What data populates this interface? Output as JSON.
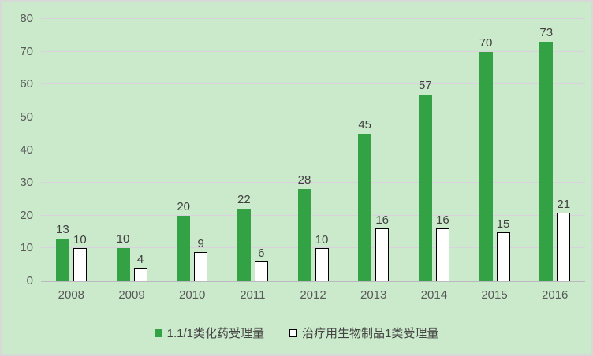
{
  "chart_data": {
    "type": "bar",
    "categories": [
      "2008",
      "2009",
      "2010",
      "2011",
      "2012",
      "2013",
      "2014",
      "2015",
      "2016"
    ],
    "series": [
      {
        "name": "1.1/1类化药受理量",
        "values": [
          13,
          10,
          20,
          22,
          28,
          45,
          57,
          70,
          73
        ],
        "style": "solid"
      },
      {
        "name": "治疗用生物制品1类受理量",
        "values": [
          10,
          4,
          9,
          6,
          10,
          16,
          16,
          15,
          21
        ],
        "style": "outline"
      }
    ],
    "title": "",
    "xlabel": "",
    "ylabel": "",
    "ylim": [
      0,
      80
    ],
    "ytick_step": 10,
    "ytick_labels": [
      "0",
      "10",
      "20",
      "30",
      "40",
      "50",
      "60",
      "70",
      "80"
    ],
    "grid": true,
    "legend_position": "bottom",
    "colors": {
      "background": "#cbeacb",
      "border": "#d6d9d6",
      "bar_green": "#32a244",
      "bar_white_fill": "#ffffff",
      "bar_outline": "#000000",
      "gridline": "#d9d2de",
      "baseline": "#bcb8c2",
      "value_label_text": "#3f3f3f",
      "axis_text": "#595959",
      "legend_text": "#444444"
    }
  }
}
